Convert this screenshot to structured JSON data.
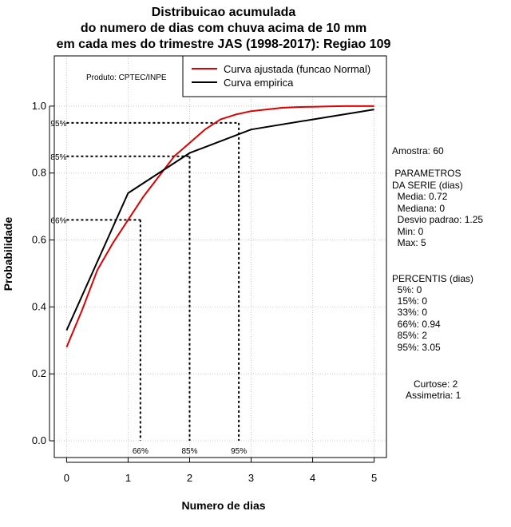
{
  "chart_data": {
    "type": "line",
    "title": [
      "Distribuicao acumulada",
      "do numero de dias com chuva acima de 10 mm",
      "em cada mes do trimestre JAS (1998-2017): Regiao 109"
    ],
    "xlabel": "Numero de dias",
    "ylabel": "Probabilidade",
    "xlim": [
      -0.2,
      5.2
    ],
    "ylim": [
      -0.05,
      1.15
    ],
    "x_ticks": [
      0,
      1,
      2,
      3,
      4,
      5
    ],
    "y_ticks": [
      "0.0",
      "0.2",
      "0.4",
      "0.6",
      "0.8",
      "1.0"
    ],
    "grid": true,
    "legend_position": "top-right",
    "product_label": "Produto: CPTEC/INPE",
    "series": [
      {
        "name": "Curva ajustada (funcao Normal)",
        "color": "#dd0000",
        "x": [
          0,
          0.25,
          0.5,
          0.75,
          1,
          1.25,
          1.5,
          1.75,
          2,
          2.25,
          2.5,
          2.75,
          3,
          3.25,
          3.5,
          3.75,
          4,
          4.25,
          4.5,
          4.75,
          5
        ],
        "y": [
          0.28,
          0.39,
          0.51,
          0.59,
          0.66,
          0.73,
          0.79,
          0.85,
          0.89,
          0.93,
          0.96,
          0.975,
          0.985,
          0.99,
          0.995,
          0.997,
          0.998,
          0.999,
          1.0,
          1.0,
          1.0
        ]
      },
      {
        "name": "Curva empirica",
        "color": "#000000",
        "x": [
          0,
          1,
          2,
          3,
          4,
          5
        ],
        "y": [
          0.33,
          0.74,
          0.86,
          0.93,
          0.96,
          0.99
        ]
      }
    ],
    "percentile_markers": [
      {
        "label": "66%",
        "x": 1.2,
        "y": 0.66
      },
      {
        "label": "85%",
        "x": 2.0,
        "y": 0.85
      },
      {
        "label": "95%",
        "x": 2.8,
        "y": 0.95
      }
    ]
  },
  "stats": {
    "amostra": "Amostra: 60",
    "param_header_1": " PARAMETROS",
    "param_header_2": "DA SERIE (dias)",
    "media": "  Media: 0.72",
    "mediana": "  Mediana: 0",
    "desvio": "  Desvio padrao: 1.25",
    "min": "  Min: 0",
    "max": "  Max: 5",
    "percentis_header": "PERCENTIS (dias)",
    "p5": "  5%: 0",
    "p15": "  15%: 0",
    "p33": "  33%: 0",
    "p66": "  66%: 0.94",
    "p85": "  85%: 2",
    "p95": "  95%: 3.05",
    "curtose": "Curtose: 2",
    "assimetria": "Assimetria: 1"
  }
}
